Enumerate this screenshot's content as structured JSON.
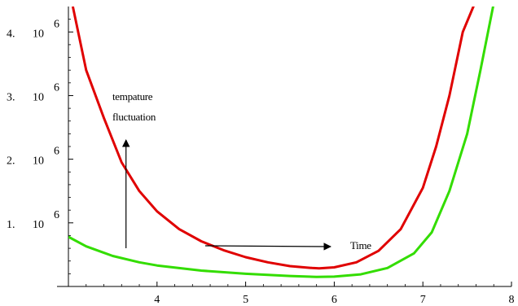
{
  "chart_data": {
    "type": "line",
    "title": "",
    "xlabel": "",
    "ylabel": "",
    "xlim": [
      3.0,
      8.0
    ],
    "ylim": [
      0,
      4400000
    ],
    "x_ticks": [
      4,
      5,
      6,
      7,
      8
    ],
    "y_ticks": [
      {
        "value": 1000000,
        "mantissa": "1.",
        "base": "10",
        "exponent": "6"
      },
      {
        "value": 2000000,
        "mantissa": "2.",
        "base": "10",
        "exponent": "6"
      },
      {
        "value": 3000000,
        "mantissa": "3.",
        "base": "10",
        "exponent": "6"
      },
      {
        "value": 4000000,
        "mantissa": "4.",
        "base": "10",
        "exponent": "6"
      }
    ],
    "grid": false,
    "series": [
      {
        "color": "#e00000",
        "x": [
          3.05,
          3.2,
          3.4,
          3.6,
          3.8,
          4.0,
          4.25,
          4.5,
          4.75,
          5.0,
          5.25,
          5.5,
          5.75,
          5.83,
          6.0,
          6.25,
          6.5,
          6.75,
          7.0,
          7.15,
          7.3,
          7.45,
          7.6
        ],
        "y": [
          4400000,
          3400000,
          2650000,
          1950000,
          1500000,
          1180000,
          900000,
          710000,
          570000,
          460000,
          380000,
          320000,
          290000,
          285000,
          300000,
          380000,
          560000,
          900000,
          1550000,
          2200000,
          3000000,
          4000000,
          4500000
        ]
      },
      {
        "color": "#33dd00",
        "x": [
          3.0,
          3.2,
          3.5,
          3.8,
          4.0,
          4.5,
          5.0,
          5.5,
          5.8,
          6.0,
          6.3,
          6.6,
          6.9,
          7.1,
          7.3,
          7.5,
          7.65,
          7.8
        ],
        "y": [
          780000,
          630000,
          480000,
          380000,
          330000,
          250000,
          200000,
          165000,
          150000,
          155000,
          190000,
          290000,
          520000,
          850000,
          1500000,
          2400000,
          3400000,
          4450000
        ]
      }
    ],
    "annotations": [
      {
        "text_lines": [
          "tempature",
          "fluctuation"
        ],
        "arrow": "up",
        "at_x": 3.65
      },
      {
        "text": "Time",
        "arrow": "right"
      }
    ]
  }
}
